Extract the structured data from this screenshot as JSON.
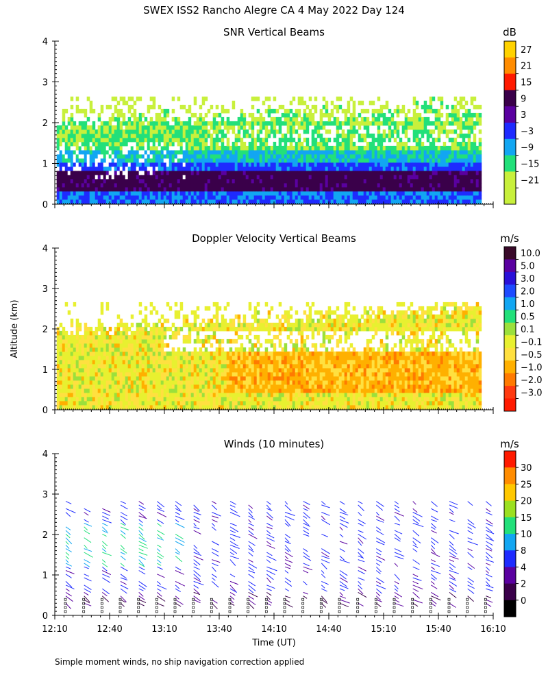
{
  "figure": {
    "title": "SWEX ISS2 Rancho Alegre CA   4 May 2022 Day 124",
    "y_axis_label": "Altitude (km)",
    "x_axis_label": "Time (UT)",
    "footnote": "Simple moment winds, no ship navigation correction applied"
  },
  "chart_data": [
    {
      "id": "snr",
      "type": "heatmap",
      "title": "SNR Vertical Beams",
      "xlabel": "",
      "ylabel": "Altitude (km)",
      "x_range_min": [
        730,
        970
      ],
      "ylim": [
        0,
        4
      ],
      "y_ticks": [
        "0",
        "1",
        "2",
        "3",
        "4"
      ],
      "colorbar": {
        "unit": "dB",
        "labels": [
          "27",
          "21",
          "15",
          "9",
          "3",
          "−3",
          "−9",
          "−15",
          "−21"
        ],
        "colors": [
          "#ffd200",
          "#ff8c00",
          "#ff1a00",
          "#3a004a",
          "#5a00a0",
          "#1e2bff",
          "#12a6f2",
          "#22e07a",
          "#c8f03c",
          "#c8f03c"
        ],
        "color_order": "top-to-bottom"
      },
      "description_layers": [
        {
          "alt_low": 0.15,
          "alt_high": 0.35,
          "color": "#12a6f2"
        },
        {
          "alt_low": 0.35,
          "alt_high": 0.85,
          "color": "#3a004a"
        },
        {
          "alt_low": 0.85,
          "alt_high": 1.1,
          "color": "#1e2bff"
        },
        {
          "alt_low": 1.1,
          "alt_high": 1.3,
          "color": "#12a6f2"
        },
        {
          "alt_low": 1.3,
          "alt_high": 1.7,
          "color": "#22e07a"
        },
        {
          "alt_low": 1.7,
          "alt_high": 2.05,
          "color": "#c8f03c"
        },
        {
          "alt_low": 2.05,
          "alt_high": 2.6,
          "color": "#c8f03c"
        }
      ]
    },
    {
      "id": "doppler",
      "type": "heatmap",
      "title": "Doppler Velocity Vertical Beams",
      "xlabel": "",
      "ylabel": "Altitude (km)",
      "x_range_min": [
        730,
        970
      ],
      "ylim": [
        0,
        4
      ],
      "y_ticks": [
        "0",
        "1",
        "2",
        "3",
        "4"
      ],
      "colorbar": {
        "unit": "m/s",
        "labels": [
          "10.0",
          "5.0",
          "3.0",
          "2.0",
          "1.0",
          "0.5",
          "0.1",
          "−0.1",
          "−0.5",
          "−1.0",
          "−2.0",
          "−3.0"
        ],
        "colors": [
          "#3a0a2a",
          "#5a00a0",
          "#2a10d8",
          "#1e4bff",
          "#12a6f2",
          "#22e07a",
          "#9be03c",
          "#e8f030",
          "#ffe040",
          "#ffb000",
          "#ff7a00",
          "#ff3a10",
          "#ff1a00"
        ],
        "color_order": "top-to-bottom"
      }
    },
    {
      "id": "winds",
      "type": "scatter",
      "title": "Winds (10 minutes)",
      "xlabel": "Time (UT)",
      "ylabel": "Altitude (km)",
      "x_range_min": [
        730,
        970
      ],
      "ylim": [
        0,
        4
      ],
      "y_ticks": [
        "0",
        "1",
        "2",
        "3",
        "4"
      ],
      "x_tick_labels": [
        "12:10",
        "12:40",
        "13:10",
        "13:40",
        "14:10",
        "14:40",
        "15:10",
        "15:40",
        "16:10"
      ],
      "x_tick_minutes": [
        730,
        760,
        790,
        820,
        850,
        880,
        910,
        940,
        970
      ],
      "profile_times_min": [
        736,
        746,
        756,
        766,
        776,
        786,
        796,
        806,
        816,
        826,
        836,
        846,
        856,
        866,
        876,
        886,
        896,
        906,
        916,
        926,
        936,
        946,
        956,
        966
      ],
      "colorbar": {
        "unit": "m/s",
        "labels": [
          "30",
          "25",
          "20",
          "15",
          "10",
          "8",
          "4",
          "2",
          "0"
        ],
        "colors": [
          "#ff1a00",
          "#ff8c00",
          "#ffc800",
          "#9be020",
          "#22e07a",
          "#12a6f2",
          "#1e2bff",
          "#5a00a0",
          "#3a004a",
          "#000000"
        ],
        "color_order": "top-to-bottom"
      }
    }
  ]
}
